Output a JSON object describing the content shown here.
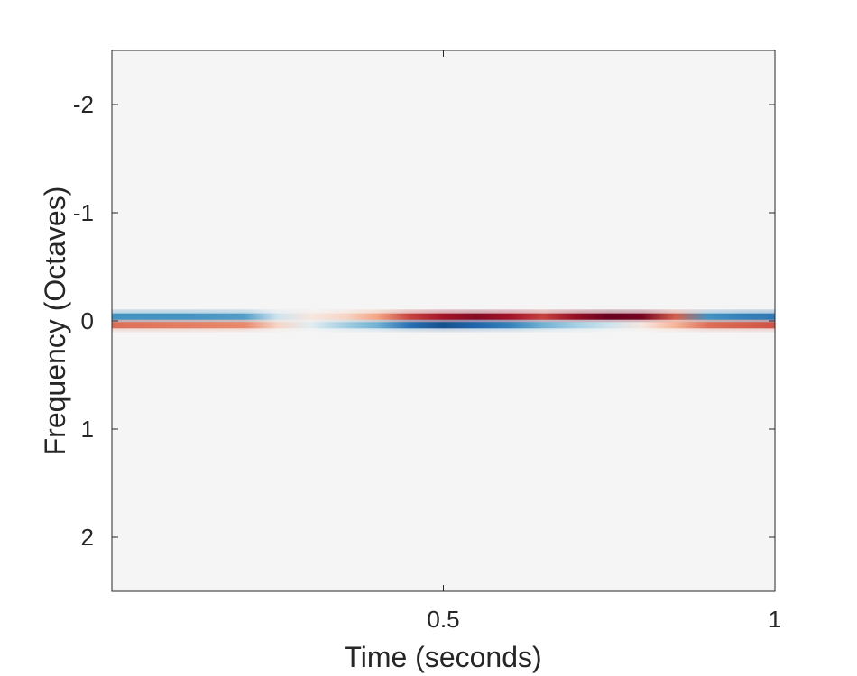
{
  "chart_data": {
    "type": "heatmap",
    "title": "",
    "xlabel": "Time (seconds)",
    "ylabel": "Frequency (Octaves)",
    "xlim": [
      0,
      1
    ],
    "ylim": [
      -2.5,
      2.5
    ],
    "y_reversed": true,
    "x_ticks": [
      0.5,
      1
    ],
    "x_tick_labels": [
      "0.5",
      "1"
    ],
    "y_ticks": [
      -2,
      -1,
      0,
      1,
      2
    ],
    "y_tick_labels": [
      "-2",
      "-1",
      "0",
      "1",
      "2"
    ],
    "colormap": "diverging red-white-blue",
    "background_color": "#f5f5f5",
    "grid": false,
    "legend": "none",
    "upper_band": {
      "frequency_octaves": -0.04,
      "time": [
        0.0,
        0.1,
        0.2,
        0.25,
        0.3,
        0.35,
        0.4,
        0.45,
        0.5,
        0.55,
        0.6,
        0.65,
        0.7,
        0.75,
        0.8,
        0.85,
        0.9,
        0.95,
        1.0
      ],
      "value": [
        -0.5,
        -0.5,
        -0.45,
        -0.1,
        0.05,
        0.1,
        0.25,
        0.6,
        0.8,
        0.9,
        0.8,
        0.6,
        0.85,
        1.0,
        0.95,
        0.5,
        -0.5,
        -0.6,
        -0.65
      ]
    },
    "lower_band": {
      "frequency_octaves": 0.04,
      "time": [
        0.0,
        0.1,
        0.2,
        0.25,
        0.3,
        0.35,
        0.4,
        0.45,
        0.5,
        0.55,
        0.6,
        0.65,
        0.7,
        0.75,
        0.8,
        0.85,
        0.9,
        0.95,
        1.0
      ],
      "value": [
        0.45,
        0.4,
        0.35,
        0.1,
        -0.05,
        -0.2,
        -0.35,
        -0.7,
        -0.85,
        -0.75,
        -0.6,
        -0.35,
        -0.2,
        -0.1,
        0.05,
        0.2,
        0.45,
        0.5,
        0.55
      ]
    }
  }
}
